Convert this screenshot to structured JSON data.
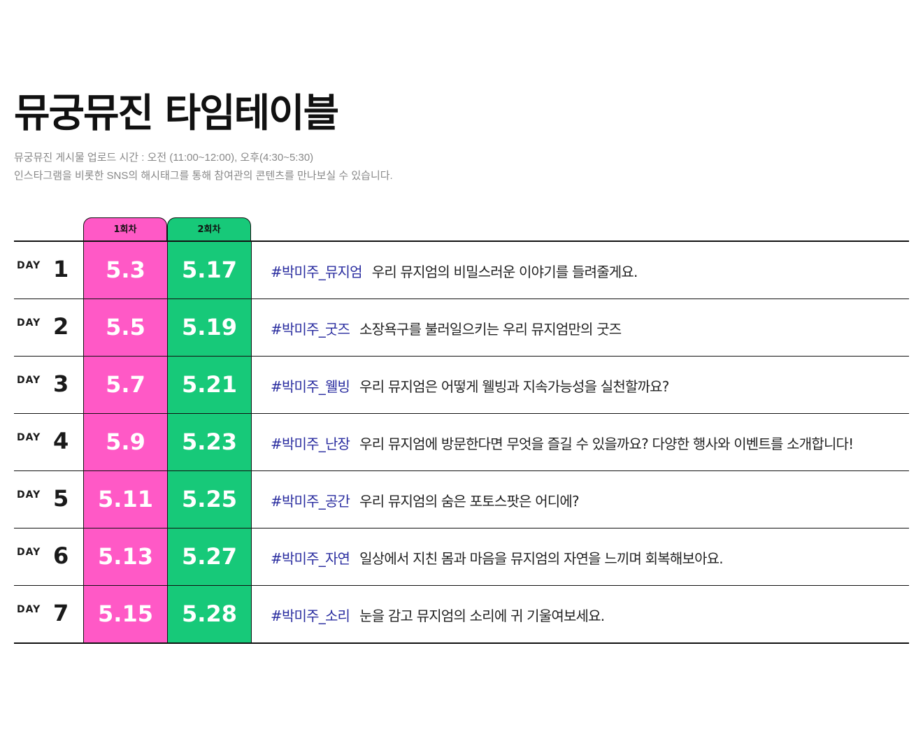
{
  "title": "뮤궁뮤진 타임테이블",
  "subtitle_line1": "뮤궁뮤진 게시물 업로드 시간 : 오전 (11:00~12:00), 오후(4:30~5:30)",
  "subtitle_line2": "인스타그램을 비롯한 SNS의 해시태그를 통해 참여관의 콘텐츠를 만나보실 수 있습니다.",
  "columns": {
    "round1": "1회차",
    "round2": "2회차"
  },
  "colors": {
    "round1": "#ff59c6",
    "round2": "#17c979",
    "tag": "#2b2ea0"
  },
  "rows": [
    {
      "day_label": "DAY",
      "day": "1",
      "date1": "5.3",
      "date2": "5.17",
      "tag": "#박미주_뮤지엄",
      "text": "우리 뮤지엄의 비밀스러운 이야기를 들려줄게요."
    },
    {
      "day_label": "DAY",
      "day": "2",
      "date1": "5.5",
      "date2": "5.19",
      "tag": "#박미주_굿즈",
      "text": "소장욕구를 불러일으키는 우리 뮤지엄만의 굿즈"
    },
    {
      "day_label": "DAY",
      "day": "3",
      "date1": "5.7",
      "date2": "5.21",
      "tag": "#박미주_웰빙",
      "text": "우리 뮤지엄은 어떻게 웰빙과 지속가능성을 실천할까요?"
    },
    {
      "day_label": "DAY",
      "day": "4",
      "date1": "5.9",
      "date2": "5.23",
      "tag": "#박미주_난장",
      "text": "우리 뮤지엄에 방문한다면 무엇을 즐길 수 있을까요? 다양한 행사와 이벤트를 소개합니다!"
    },
    {
      "day_label": "DAY",
      "day": "5",
      "date1": "5.11",
      "date2": "5.25",
      "tag": "#박미주_공간",
      "text": "우리 뮤지엄의 숨은 포토스팟은 어디에?"
    },
    {
      "day_label": "DAY",
      "day": "6",
      "date1": "5.13",
      "date2": "5.27",
      "tag": "#박미주_자연",
      "text": "일상에서 지친 몸과 마음을 뮤지엄의 자연을 느끼며 회복해보아요."
    },
    {
      "day_label": "DAY",
      "day": "7",
      "date1": "5.15",
      "date2": "5.28",
      "tag": "#박미주_소리",
      "text": "눈을 감고 뮤지엄의 소리에 귀 기울여보세요."
    }
  ]
}
